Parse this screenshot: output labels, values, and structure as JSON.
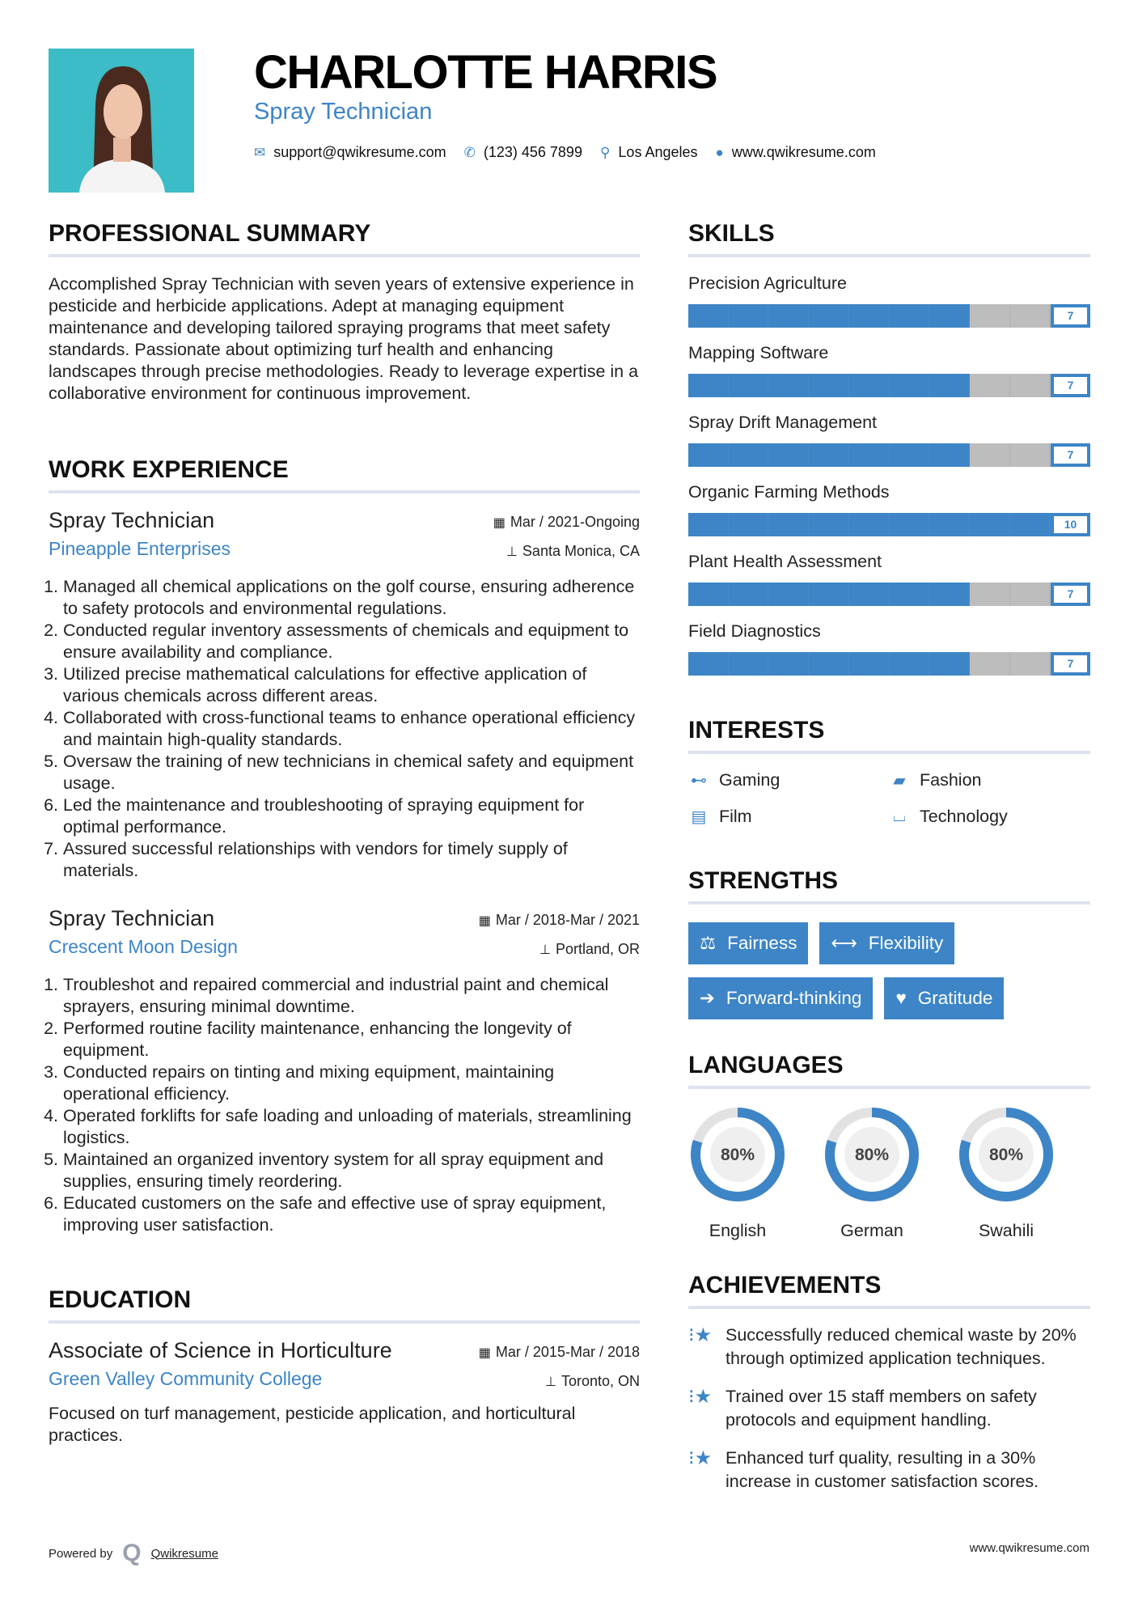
{
  "header": {
    "name": "CHARLOTTE HARRIS",
    "title": "Spray Technician",
    "contacts": {
      "email": "support@qwikresume.com",
      "phone": "(123) 456 7899",
      "location": "Los Angeles",
      "website": "www.qwikresume.com"
    }
  },
  "colors": {
    "accent": "#3d85c6",
    "bar_empty": "#bdbdbd",
    "divider": "#dde3ee",
    "photo_bg": "#3bbcc6"
  },
  "summary": {
    "heading": "PROFESSIONAL SUMMARY",
    "text": "Accomplished Spray Technician with seven years of extensive experience in pesticide and herbicide applications. Adept at managing equipment maintenance and developing tailored spraying programs that meet safety standards. Passionate about optimizing turf health and enhancing landscapes through precise methodologies. Ready to leverage expertise in a collaborative environment for continuous improvement."
  },
  "experience": {
    "heading": "WORK EXPERIENCE",
    "jobs": [
      {
        "title": "Spray Technician",
        "company": "Pineapple Enterprises",
        "dates": "Mar / 2021-Ongoing",
        "location": "Santa Monica, CA",
        "bullets": [
          "Managed all chemical applications on the golf course, ensuring adherence to safety protocols and environmental regulations.",
          "Conducted regular inventory assessments of chemicals and equipment to ensure availability and compliance.",
          "Utilized precise mathematical calculations for effective application of various chemicals across different areas.",
          "Collaborated with cross-functional teams to enhance operational efficiency and maintain high-quality standards.",
          "Oversaw the training of new technicians in chemical safety and equipment usage.",
          "Led the maintenance and troubleshooting of spraying equipment for optimal performance.",
          "Assured successful relationships with vendors for timely supply of materials."
        ]
      },
      {
        "title": "Spray Technician",
        "company": "Crescent Moon Design",
        "dates": "Mar / 2018-Mar / 2021",
        "location": "Portland, OR",
        "bullets": [
          "Troubleshot and repaired commercial and industrial paint and chemical sprayers, ensuring minimal downtime.",
          "Performed routine facility maintenance, enhancing the longevity of equipment.",
          "Conducted repairs on tinting and mixing equipment, maintaining operational efficiency.",
          "Operated forklifts for safe loading and unloading of materials, streamlining logistics.",
          "Maintained an organized inventory system for all spray equipment and supplies, ensuring timely reordering.",
          "Educated customers on the safe and effective use of spray equipment, improving user satisfaction."
        ]
      }
    ]
  },
  "education": {
    "heading": "EDUCATION",
    "degree": "Associate of Science in Horticulture",
    "school": "Green Valley Community College",
    "dates": "Mar / 2015-Mar / 2018",
    "location": "Toronto, ON",
    "text": "Focused on turf management, pesticide application, and horticultural practices."
  },
  "skills": {
    "heading": "SKILLS",
    "max": 10,
    "items": [
      {
        "label": "Precision Agriculture",
        "value": 7
      },
      {
        "label": "Mapping Software",
        "value": 7
      },
      {
        "label": "Spray Drift Management",
        "value": 7
      },
      {
        "label": "Organic Farming Methods",
        "value": 10
      },
      {
        "label": "Plant Health Assessment",
        "value": 7
      },
      {
        "label": "Field Diagnostics",
        "value": 7
      }
    ]
  },
  "interests": {
    "heading": "INTERESTS",
    "items": [
      {
        "label": "Gaming",
        "icon": "gamepad-icon"
      },
      {
        "label": "Fashion",
        "icon": "shopping-bag-icon"
      },
      {
        "label": "Film",
        "icon": "film-icon"
      },
      {
        "label": "Technology",
        "icon": "laptop-icon"
      }
    ]
  },
  "strengths": {
    "heading": "STRENGTHS",
    "items": [
      {
        "label": "Fairness",
        "icon": "balance-scale-icon"
      },
      {
        "label": "Flexibility",
        "icon": "arrows-h-icon"
      },
      {
        "label": "Forward-thinking",
        "icon": "arrow-right-icon"
      },
      {
        "label": "Gratitude",
        "icon": "heart-icon"
      }
    ]
  },
  "languages": {
    "heading": "LANGUAGES",
    "items": [
      {
        "label": "English",
        "percent": 80,
        "text": "80%"
      },
      {
        "label": "German",
        "percent": 80,
        "text": "80%"
      },
      {
        "label": "Swahili",
        "percent": 80,
        "text": "80%"
      }
    ]
  },
  "achievements": {
    "heading": "ACHIEVEMENTS",
    "items": [
      "Successfully reduced chemical waste by 20% through optimized application techniques.",
      "Trained over 15 staff members on safety protocols and equipment handling.",
      "Enhanced turf quality, resulting in a 30% increase in customer satisfaction scores."
    ]
  },
  "footer": {
    "powered_by": "Powered by",
    "brand": "Qwikresume",
    "website": "www.qwikresume.com"
  }
}
